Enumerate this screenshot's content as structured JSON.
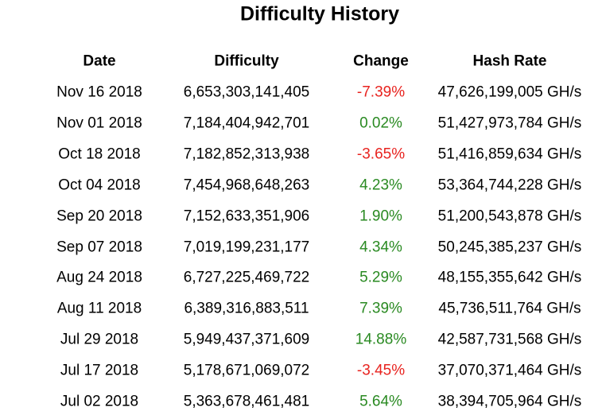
{
  "title": "Difficulty History",
  "table": {
    "headers": [
      "Date",
      "Difficulty",
      "Change",
      "Hash Rate"
    ],
    "rows": [
      [
        "Nov 16 2018",
        "6,653,303,141,405",
        "-7.39%",
        "47,626,199,005 GH/s"
      ],
      [
        "Nov 01 2018",
        "7,184,404,942,701",
        "0.02%",
        "51,427,973,784 GH/s"
      ],
      [
        "Oct 18 2018",
        "7,182,852,313,938",
        "-3.65%",
        "51,416,859,634 GH/s"
      ],
      [
        "Oct 04 2018",
        "7,454,968,648,263",
        "4.23%",
        "53,364,744,228 GH/s"
      ],
      [
        "Sep 20 2018",
        "7,152,633,351,906",
        "1.90%",
        "51,200,543,878 GH/s"
      ],
      [
        "Sep 07 2018",
        "7,019,199,231,177",
        "4.34%",
        "50,245,385,237 GH/s"
      ],
      [
        "Aug 24 2018",
        "6,727,225,469,722",
        "5.29%",
        "48,155,355,642 GH/s"
      ],
      [
        "Aug 11 2018",
        "6,389,316,883,511",
        "7.39%",
        "45,736,511,764 GH/s"
      ],
      [
        "Jul 29 2018",
        "5,949,437,371,609",
        "14.88%",
        "42,587,731,568 GH/s"
      ],
      [
        "Jul 17 2018",
        "5,178,671,069,072",
        "-3.45%",
        "37,070,371,464 GH/s"
      ],
      [
        "Jul 02 2018",
        "5,363,678,461,481",
        "5.64%",
        "38,394,705,964 GH/s"
      ]
    ]
  }
}
